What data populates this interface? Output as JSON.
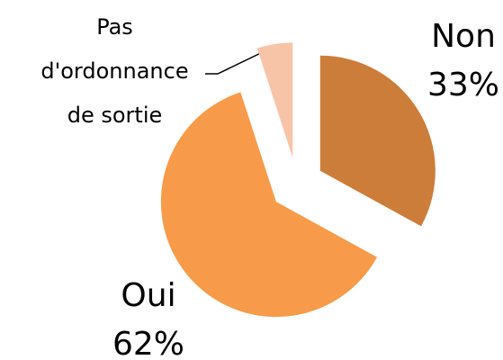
{
  "chart_data": {
    "type": "pie",
    "categories": [
      "Non",
      "Oui",
      "Pas d'ordonnance de sortie"
    ],
    "values": [
      33,
      62,
      5
    ],
    "value_labels": [
      "33%",
      "62%",
      null
    ],
    "colors": [
      "#cd7d3a",
      "#f79b4a",
      "#f8c4a8"
    ]
  }
}
